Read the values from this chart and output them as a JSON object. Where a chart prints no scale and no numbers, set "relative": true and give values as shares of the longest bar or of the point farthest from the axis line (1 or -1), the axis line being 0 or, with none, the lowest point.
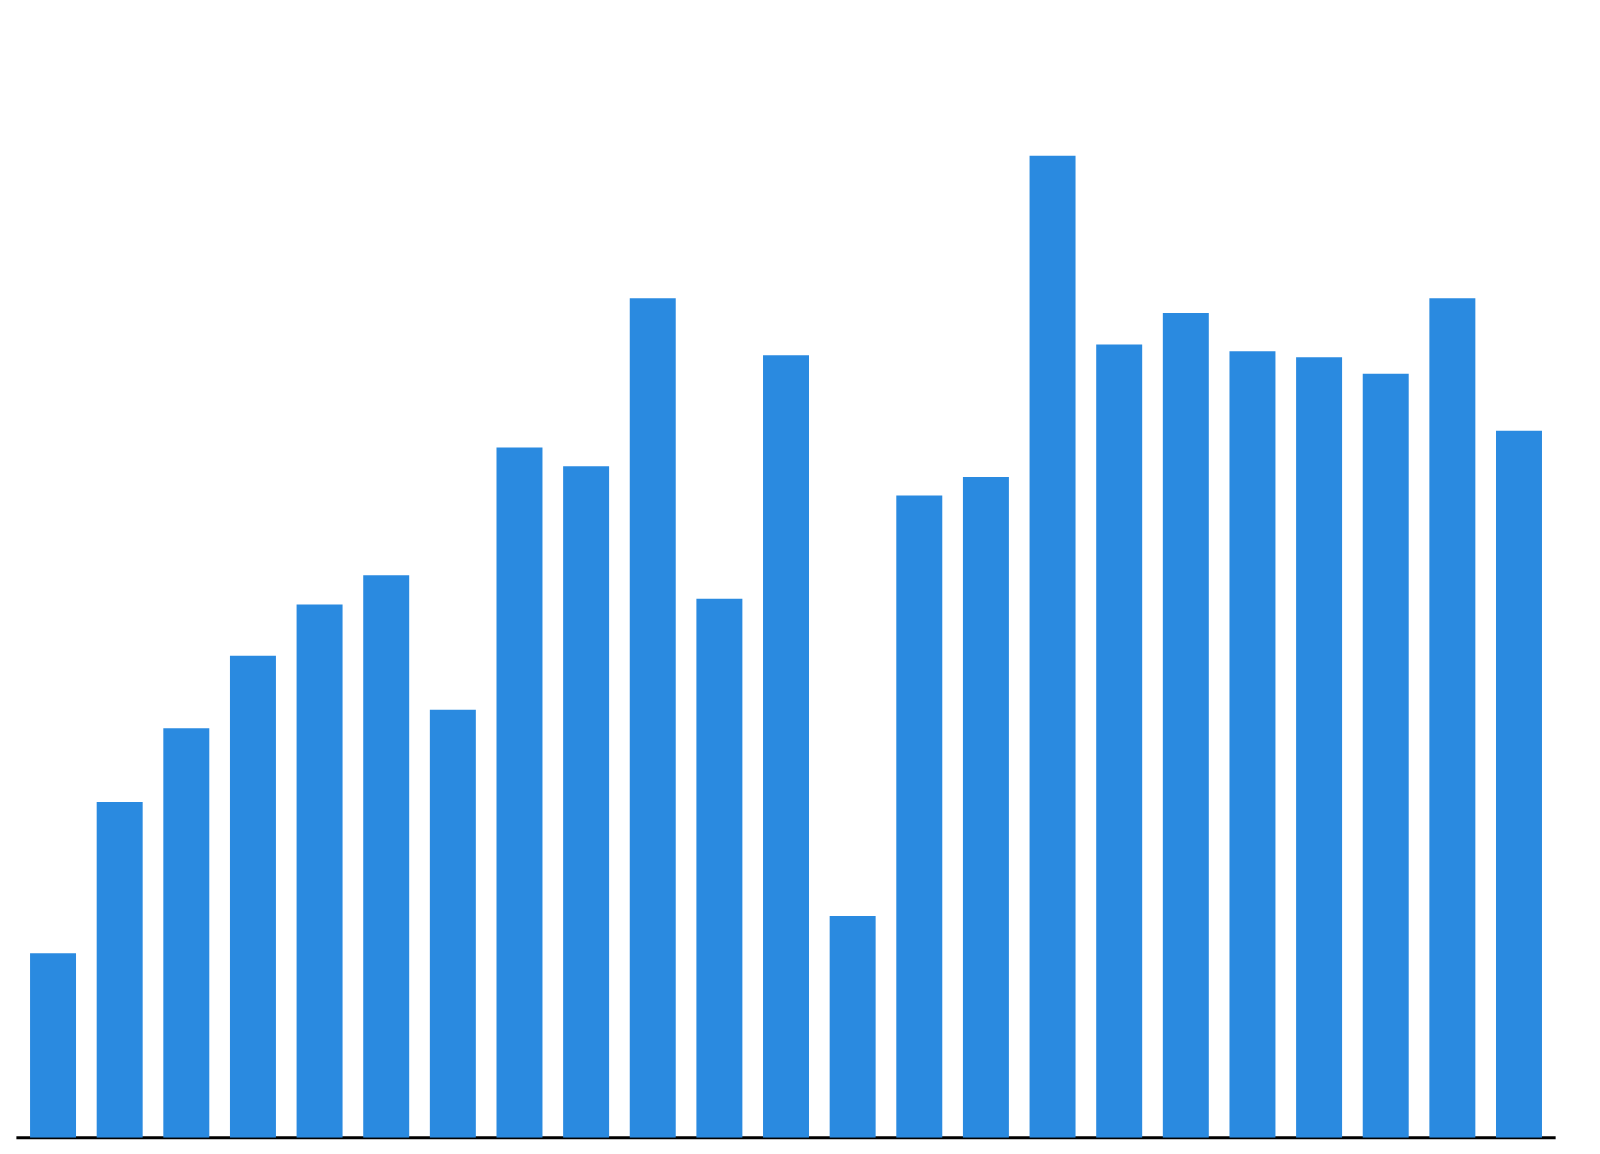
{
  "chart_data": {
    "type": "bar",
    "relative": true,
    "color": "#2a8ae0",
    "categories": [
      null,
      null,
      null,
      null,
      null,
      null,
      null,
      null,
      null,
      null,
      null,
      null,
      null,
      null,
      null,
      null,
      null,
      null,
      null,
      null,
      null,
      null,
      null
    ],
    "values": [
      0.188,
      0.342,
      0.417,
      0.491,
      0.543,
      0.573,
      0.436,
      0.703,
      0.684,
      0.855,
      0.549,
      0.797,
      0.226,
      0.654,
      0.673,
      1,
      0.808,
      0.84,
      0.801,
      0.795,
      0.778,
      0.855,
      0.72
    ]
  }
}
